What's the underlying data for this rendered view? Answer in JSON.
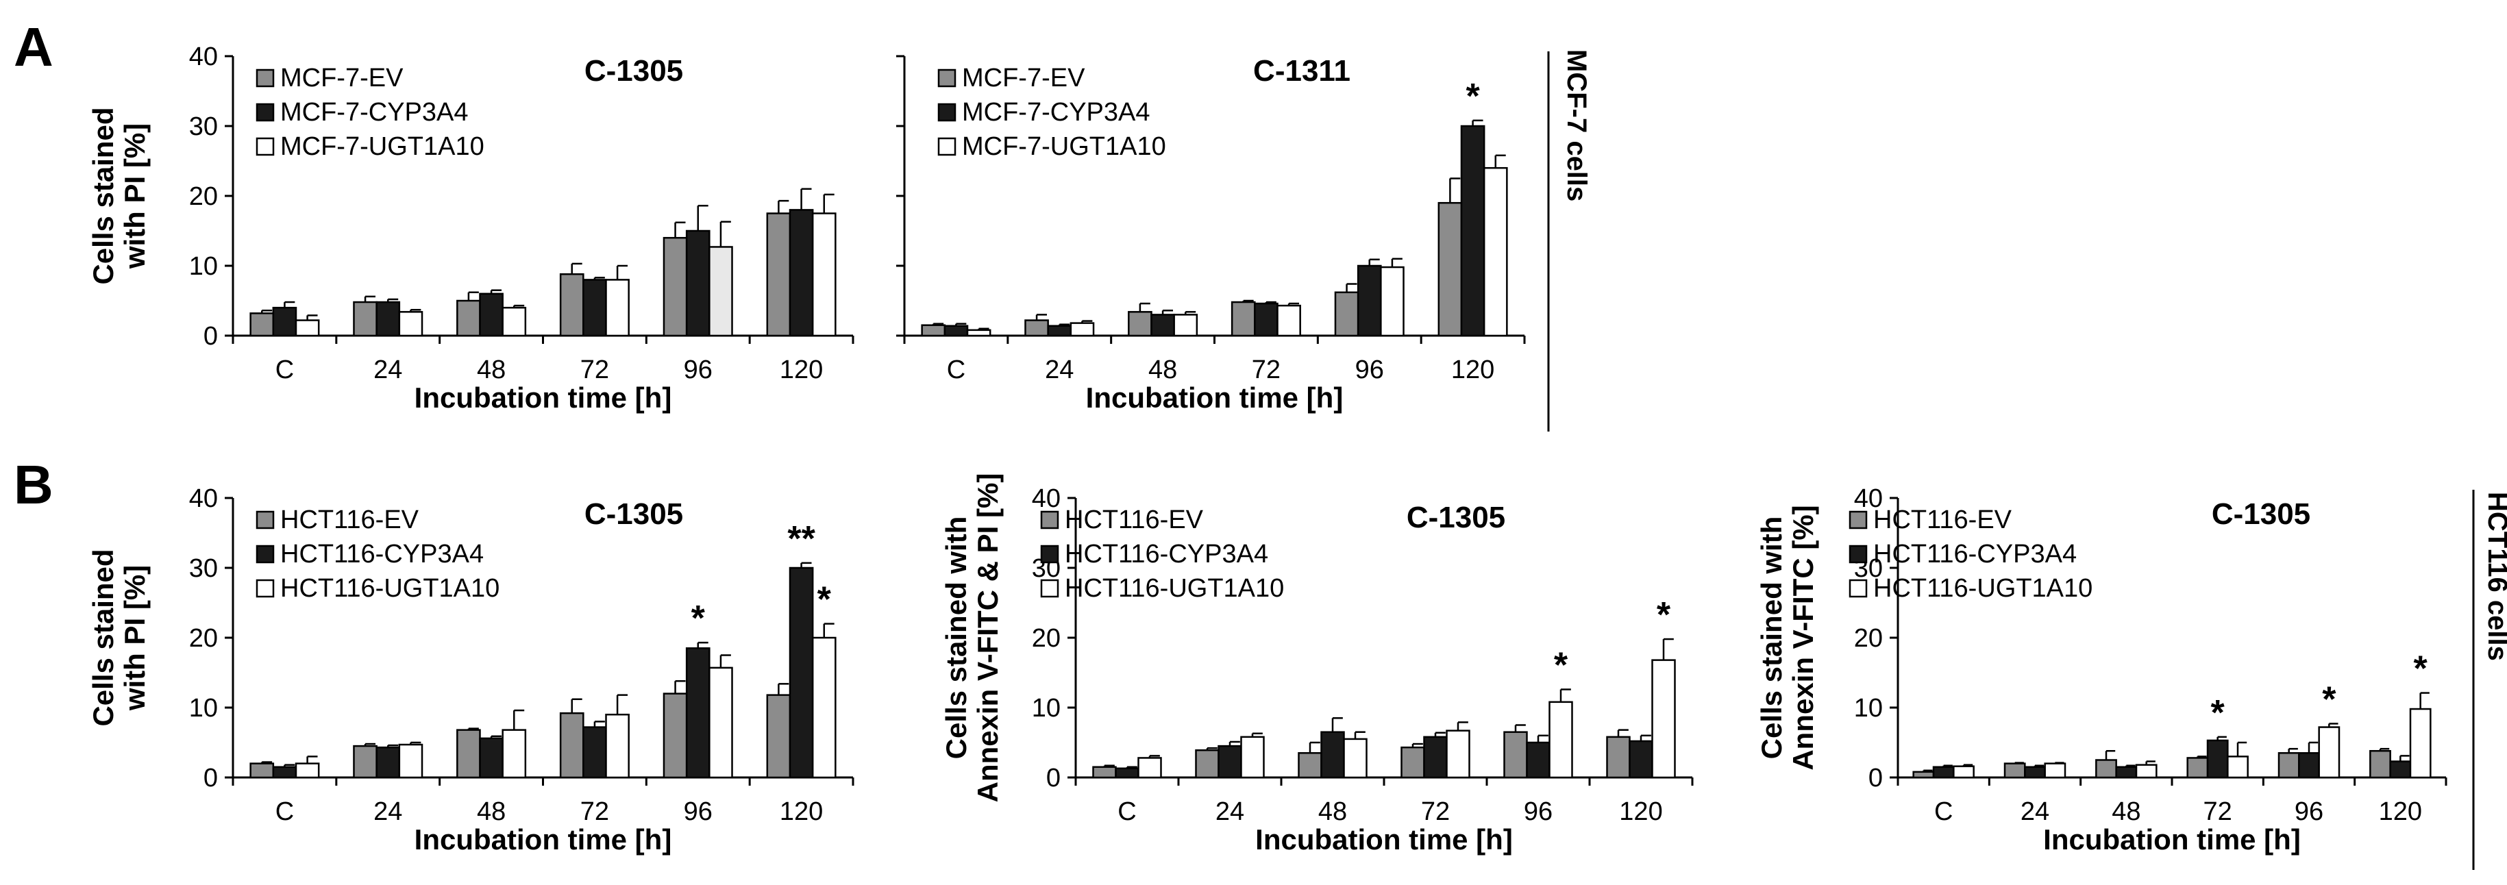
{
  "figure": {
    "panel_letters": [
      "A",
      "B"
    ],
    "side_labels": [
      "MCF-7 cells",
      "HCT116 cells"
    ],
    "colors": {
      "ev": "#8c8c8c",
      "cyp": "#1a1a1a",
      "ugt": "#ffffff",
      "ugt_alt": "#e8e8e8",
      "axis": "#000000"
    }
  },
  "chart_data": [
    {
      "type": "bar",
      "title": "C-1305",
      "xlabel": "Incubation time [h]",
      "ylabel": [
        "Cells stained",
        "with PI [%]"
      ],
      "ylim": [
        0,
        40
      ],
      "yticks": [
        "0",
        "10",
        "20",
        "30",
        "40"
      ],
      "categories": [
        "C",
        "24",
        "48",
        "72",
        "96",
        "120"
      ],
      "series": [
        {
          "name": "MCF-7-EV",
          "values": [
            3.2,
            4.8,
            5.0,
            8.8,
            14.0,
            17.5
          ],
          "errors": [
            0.4,
            0.8,
            1.2,
            1.5,
            2.2,
            1.8
          ]
        },
        {
          "name": "MCF-7-CYP3A4",
          "values": [
            4.0,
            4.8,
            6.0,
            8.0,
            15.0,
            18.0
          ],
          "errors": [
            0.8,
            0.4,
            0.5,
            0.3,
            3.6,
            3.0
          ]
        },
        {
          "name": "MCF-7-UGT1A10",
          "values": [
            2.2,
            3.4,
            4.0,
            8.0,
            12.7,
            17.5
          ],
          "errors": [
            0.7,
            0.3,
            0.3,
            2.0,
            3.6,
            2.7
          ]
        }
      ],
      "annotations": []
    },
    {
      "type": "bar",
      "title": "C-1311",
      "xlabel": "Incubation time [h]",
      "ylabel": [],
      "ylim": [
        0,
        40
      ],
      "yticks": [],
      "categories": [
        "C",
        "24",
        "48",
        "72",
        "96",
        "120"
      ],
      "series": [
        {
          "name": "MCF-7-EV",
          "values": [
            1.5,
            2.2,
            3.4,
            4.8,
            6.2,
            19.0
          ],
          "errors": [
            0.2,
            0.8,
            1.2,
            0.2,
            1.2,
            3.5
          ]
        },
        {
          "name": "MCF-7-CYP3A4",
          "values": [
            1.4,
            1.4,
            3.0,
            4.6,
            10.0,
            30.0
          ],
          "errors": [
            0.3,
            0.2,
            0.6,
            0.2,
            0.9,
            0.8
          ]
        },
        {
          "name": "MCF-7-UGT1A10",
          "values": [
            0.8,
            1.8,
            3.0,
            4.3,
            9.8,
            24.0
          ],
          "errors": [
            0.2,
            0.3,
            0.4,
            0.3,
            1.2,
            1.8
          ]
        }
      ],
      "annotations": [
        {
          "category": "120",
          "series": 1,
          "text": "*"
        }
      ]
    },
    {
      "type": "bar",
      "title": "C-1305",
      "xlabel": "Incubation time [h]",
      "ylabel": [
        "Cells stained",
        "with PI [%]"
      ],
      "ylim": [
        0,
        40
      ],
      "yticks": [
        "0",
        "10",
        "20",
        "30",
        "40"
      ],
      "categories": [
        "C",
        "24",
        "48",
        "72",
        "96",
        "120"
      ],
      "series": [
        {
          "name": "HCT116-EV",
          "values": [
            2.0,
            4.5,
            6.8,
            9.2,
            12.0,
            11.8
          ],
          "errors": [
            0.2,
            0.3,
            0.2,
            2.0,
            1.8,
            1.6
          ]
        },
        {
          "name": "HCT116-CYP3A4",
          "values": [
            1.5,
            4.3,
            5.6,
            7.2,
            18.5,
            30.0
          ],
          "errors": [
            0.3,
            0.3,
            0.3,
            0.8,
            0.8,
            0.7
          ]
        },
        {
          "name": "HCT116-UGT1A10",
          "values": [
            2.0,
            4.7,
            6.8,
            9.0,
            15.7,
            20.0
          ],
          "errors": [
            1.0,
            0.3,
            2.8,
            2.8,
            1.8,
            2.0
          ]
        }
      ],
      "annotations": [
        {
          "category": "96",
          "series": 1,
          "text": "*"
        },
        {
          "category": "120",
          "series": 1,
          "text": "**"
        },
        {
          "category": "120",
          "series": 2,
          "text": "*"
        }
      ]
    },
    {
      "type": "bar",
      "title": "C-1305",
      "xlabel": "Incubation time [h]",
      "ylabel": [
        "Cells stained with",
        "Annexin V-FITC & PI [%]"
      ],
      "ylim": [
        0,
        40
      ],
      "yticks": [
        "0",
        "10",
        "20",
        "30",
        "40"
      ],
      "categories": [
        "C",
        "24",
        "48",
        "72",
        "96",
        "120"
      ],
      "series": [
        {
          "name": "HCT116-EV",
          "values": [
            1.5,
            3.9,
            3.5,
            4.3,
            6.5,
            5.8
          ],
          "errors": [
            0.2,
            0.3,
            1.5,
            0.5,
            1.0,
            1.0
          ]
        },
        {
          "name": "HCT116-CYP3A4",
          "values": [
            1.3,
            4.5,
            6.5,
            5.8,
            5.0,
            5.2
          ],
          "errors": [
            0.2,
            0.6,
            2.0,
            0.6,
            1.0,
            0.8
          ]
        },
        {
          "name": "HCT116-UGT1A10",
          "values": [
            2.8,
            5.8,
            5.5,
            6.7,
            10.8,
            16.8
          ],
          "errors": [
            0.3,
            0.5,
            1.0,
            1.2,
            1.8,
            3.0
          ]
        }
      ],
      "annotations": [
        {
          "category": "96",
          "series": 2,
          "text": "*"
        },
        {
          "category": "120",
          "series": 2,
          "text": "*"
        }
      ]
    },
    {
      "type": "bar",
      "title": "C-1305",
      "xlabel": "Incubation time [h]",
      "ylabel": [
        "Cells stained with",
        "Annexin V-FITC [%]"
      ],
      "ylim": [
        0,
        40
      ],
      "yticks": [
        "0",
        "10",
        "20",
        "30",
        "40"
      ],
      "categories": [
        "C",
        "24",
        "48",
        "72",
        "96",
        "120"
      ],
      "series": [
        {
          "name": "HCT116-EV",
          "values": [
            0.8,
            2.0,
            2.5,
            2.8,
            3.5,
            3.8
          ],
          "errors": [
            0.2,
            0.1,
            1.3,
            0.2,
            0.6,
            0.3
          ]
        },
        {
          "name": "HCT116-CYP3A4",
          "values": [
            1.5,
            1.5,
            1.5,
            5.3,
            3.5,
            2.3
          ],
          "errors": [
            0.2,
            0.2,
            0.2,
            0.5,
            1.5,
            0.8
          ]
        },
        {
          "name": "HCT116-UGT1A10",
          "values": [
            1.6,
            2.0,
            1.8,
            3.0,
            7.2,
            9.8
          ],
          "errors": [
            0.2,
            0.1,
            0.5,
            2.0,
            0.5,
            2.3
          ]
        }
      ],
      "annotations": [
        {
          "category": "72",
          "series": 1,
          "text": "*"
        },
        {
          "category": "96",
          "series": 2,
          "text": "*"
        },
        {
          "category": "120",
          "series": 2,
          "text": "*"
        }
      ]
    }
  ]
}
